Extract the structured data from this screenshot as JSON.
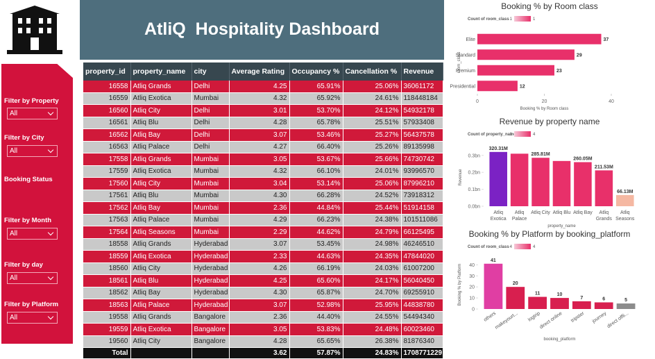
{
  "header": {
    "title": "AtliQ  Hospitality Dashboard"
  },
  "filters": [
    {
      "label": "Filter by Property",
      "value": "All"
    },
    {
      "label": "Filter by City",
      "value": "All"
    },
    {
      "label": "Booking Status"
    },
    {
      "label": "Filter by Month",
      "value": "All"
    },
    {
      "label": "Filter by day",
      "value": "All"
    },
    {
      "label": "Filter by Platform",
      "value": "All"
    }
  ],
  "table": {
    "columns": [
      "property_id",
      "property_name",
      "city",
      "Average Rating",
      "Occupancy %",
      "Cancellation %",
      "Revenue"
    ],
    "rows": [
      [
        "16558",
        "Atliq Grands",
        "Delhi",
        "4.25",
        "65.91%",
        "25.06%",
        "36061172"
      ],
      [
        "16559",
        "Atliq Exotica",
        "Mumbai",
        "4.32",
        "65.92%",
        "24.61%",
        "118448184"
      ],
      [
        "16560",
        "Atliq City",
        "Delhi",
        "3.01",
        "53.70%",
        "24.12%",
        "54932178"
      ],
      [
        "16561",
        "Atliq Blu",
        "Delhi",
        "4.28",
        "65.78%",
        "25.51%",
        "57933408"
      ],
      [
        "16562",
        "Atliq Bay",
        "Delhi",
        "3.07",
        "53.46%",
        "25.27%",
        "56437578"
      ],
      [
        "16563",
        "Atliq Palace",
        "Delhi",
        "4.27",
        "66.40%",
        "25.26%",
        "89135998"
      ],
      [
        "17558",
        "Atliq Grands",
        "Mumbai",
        "3.05",
        "53.67%",
        "25.66%",
        "74730742"
      ],
      [
        "17559",
        "Atliq Exotica",
        "Mumbai",
        "4.32",
        "66.10%",
        "24.01%",
        "93996570"
      ],
      [
        "17560",
        "Atliq City",
        "Mumbai",
        "3.04",
        "53.14%",
        "25.06%",
        "87996210"
      ],
      [
        "17561",
        "Atliq Blu",
        "Mumbai",
        "4.30",
        "66.28%",
        "24.52%",
        "73918312"
      ],
      [
        "17562",
        "Atliq Bay",
        "Mumbai",
        "2.36",
        "44.84%",
        "25.44%",
        "51914158"
      ],
      [
        "17563",
        "Atliq Palace",
        "Mumbai",
        "4.29",
        "66.23%",
        "24.38%",
        "101511086"
      ],
      [
        "17564",
        "Atliq Seasons",
        "Mumbai",
        "2.29",
        "44.62%",
        "24.79%",
        "66125495"
      ],
      [
        "18558",
        "Atliq Grands",
        "Hyderabad",
        "3.07",
        "53.45%",
        "24.98%",
        "46246510"
      ],
      [
        "18559",
        "Atliq Exotica",
        "Hyderabad",
        "2.33",
        "44.63%",
        "24.35%",
        "47844020"
      ],
      [
        "18560",
        "Atliq City",
        "Hyderabad",
        "4.26",
        "66.19%",
        "24.03%",
        "61007200"
      ],
      [
        "18561",
        "Atliq Blu",
        "Hyderabad",
        "4.25",
        "65.60%",
        "24.17%",
        "56040450"
      ],
      [
        "18562",
        "Atliq Bay",
        "Hyderabad",
        "4.30",
        "65.87%",
        "24.70%",
        "69255910"
      ],
      [
        "18563",
        "Atliq Palace",
        "Hyderabad",
        "3.07",
        "52.98%",
        "25.95%",
        "44838780"
      ],
      [
        "19558",
        "Atliq Grands",
        "Bangalore",
        "2.36",
        "44.40%",
        "24.55%",
        "54494340"
      ],
      [
        "19559",
        "Atliq Exotica",
        "Bangalore",
        "3.05",
        "53.83%",
        "24.48%",
        "60023460"
      ],
      [
        "19560",
        "Atliq City",
        "Bangalore",
        "4.28",
        "65.65%",
        "26.38%",
        "81876340"
      ]
    ],
    "total": {
      "label": "Total",
      "cells": [
        "3.62",
        "57.87%",
        "24.83%",
        "1708771229"
      ]
    }
  },
  "chart_data": [
    {
      "type": "barh",
      "title": "Booking % by Room class",
      "legend": {
        "title": "Count of room_class",
        "min": 1,
        "max": 1,
        "colors": [
          "#f6c9d8",
          "#e8306a"
        ]
      },
      "categories": [
        "Elite",
        "Standard",
        "Premium",
        "Presidential"
      ],
      "values": [
        37,
        29,
        23,
        12
      ],
      "color": "#e8306a",
      "xlim": [
        0,
        40
      ],
      "xticks": [
        0,
        20,
        40
      ],
      "x_label": "Booking % by Room class",
      "y_label": "room_class"
    },
    {
      "type": "bar",
      "title": "Revenue by property name",
      "legend": {
        "title": "Count of property_name",
        "min": 1,
        "max": 4,
        "colors": [
          "#f6c9d8",
          "#e8306a"
        ]
      },
      "categories": [
        "Atliq Exotica",
        "Atliq Palace",
        "Atliq City",
        "Atliq Blu",
        "Atliq Bay",
        "Atliq Grands",
        "Atliq Seasons"
      ],
      "values": [
        0.32031,
        0.31,
        0.28581,
        0.267,
        0.26005,
        0.21153,
        0.06613
      ],
      "value_labels": [
        "320.31M",
        null,
        "285.81M",
        null,
        "260.05M",
        "211.53M",
        "66.13M"
      ],
      "colors": [
        "#7b22c4",
        "#e8306a",
        "#e8306a",
        "#e8306a",
        "#e8306a",
        "#e8306a",
        "#f5b8a2"
      ],
      "ylim": [
        0,
        0.34
      ],
      "yticks": [
        {
          "value": 0,
          "label": "0.0bn"
        },
        {
          "value": 0.1,
          "label": "0.1bn"
        },
        {
          "value": 0.2,
          "label": "0.2bn"
        },
        {
          "value": 0.3,
          "label": "0.3bn"
        }
      ],
      "x_label": "property_name",
      "y_label": "Revenue"
    },
    {
      "type": "bar",
      "title": "Booking % by Platform by booking_platform",
      "legend": {
        "title": "Count of room_class",
        "min": 4,
        "max": 4,
        "colors": [
          "#f6c9d8",
          "#e8306a"
        ]
      },
      "categories": [
        "others",
        "makeyourt...",
        "logtrip",
        "direct online",
        "tripster",
        "journey",
        "direct offli..."
      ],
      "values": [
        41,
        20,
        11,
        10,
        7,
        6,
        5
      ],
      "colors": [
        "#e03ea3",
        "#d81f4f",
        "#d81f4f",
        "#d81f4f",
        "#d81f4f",
        "#d81f4f",
        "#8c8c8c"
      ],
      "ylim": [
        0,
        44
      ],
      "yticks": [
        0,
        10,
        20,
        30,
        40
      ],
      "x_label": "booking_platform",
      "y_label": "Booking % by Platform"
    }
  ]
}
